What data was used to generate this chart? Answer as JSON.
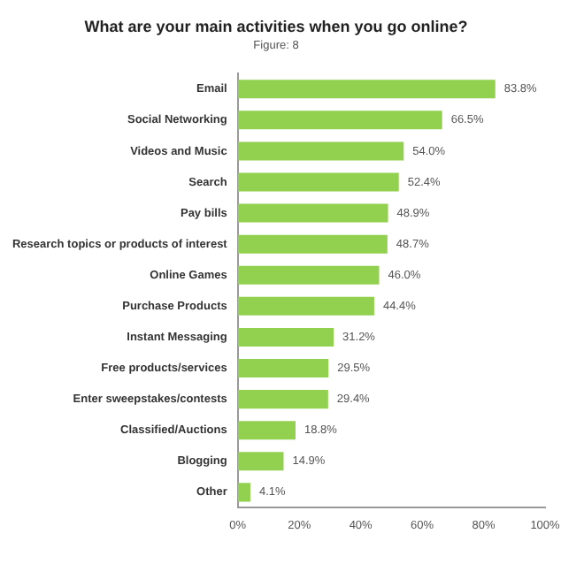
{
  "chart_data": {
    "type": "bar",
    "orientation": "horizontal",
    "title": "What are your main activities when you go online?",
    "subtitle": "Figure: 8",
    "categories": [
      "Email",
      "Social Networking",
      "Videos and Music",
      "Search",
      "Pay bills",
      "Research topics or products of interest",
      "Online Games",
      "Purchase Products",
      "Instant Messaging",
      "Free products/services",
      "Enter sweepstakes/contests",
      "Classified/Auctions",
      "Blogging",
      "Other"
    ],
    "values": [
      83.8,
      66.5,
      54.0,
      52.4,
      48.9,
      48.7,
      46.0,
      44.4,
      31.2,
      29.5,
      29.4,
      18.8,
      14.9,
      4.1
    ],
    "value_labels": [
      "83.8%",
      "66.5%",
      "54.0%",
      "52.4%",
      "48.9%",
      "48.7%",
      "46.0%",
      "44.4%",
      "31.2%",
      "29.5%",
      "29.4%",
      "18.8%",
      "14.9%",
      "4.1%"
    ],
    "color": "#92d050",
    "xlim": [
      0,
      100
    ],
    "xticks": [
      {
        "value": 0,
        "label": "0%"
      },
      {
        "value": 20,
        "label": "20%"
      },
      {
        "value": 40,
        "label": "40%"
      },
      {
        "value": 60,
        "label": "60%"
      },
      {
        "value": 80,
        "label": "80%"
      },
      {
        "value": 100,
        "label": "100%"
      }
    ],
    "grid": false,
    "legend": false
  }
}
